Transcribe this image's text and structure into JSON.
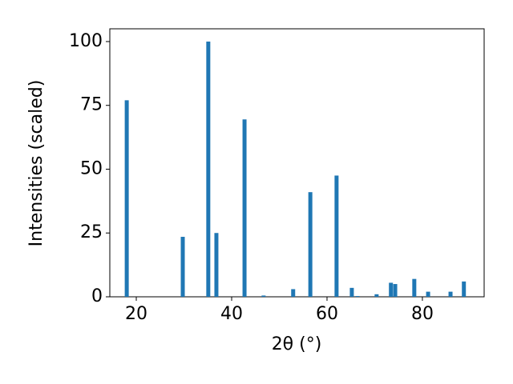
{
  "chart_data": {
    "type": "bar",
    "x_label": "2θ (°)",
    "y_label": "Intensities (scaled)",
    "x": [
      18.0,
      29.75,
      35.1,
      36.8,
      42.7,
      46.7,
      52.9,
      56.5,
      62.0,
      65.2,
      66.4,
      70.4,
      73.4,
      74.3,
      78.3,
      81.2,
      85.9,
      88.7
    ],
    "values": [
      77,
      23.5,
      100,
      25,
      69.5,
      0.5,
      3,
      41,
      47.5,
      3.5,
      0.3,
      1,
      5.5,
      5,
      7,
      2,
      2,
      6
    ],
    "color": "#1f77b4",
    "xlim": [
      14.45,
      92.95
    ],
    "xticks": [
      20,
      40,
      60,
      80
    ],
    "ylim": [
      0,
      105
    ],
    "yticks": [
      0,
      25,
      50,
      75,
      100
    ]
  }
}
